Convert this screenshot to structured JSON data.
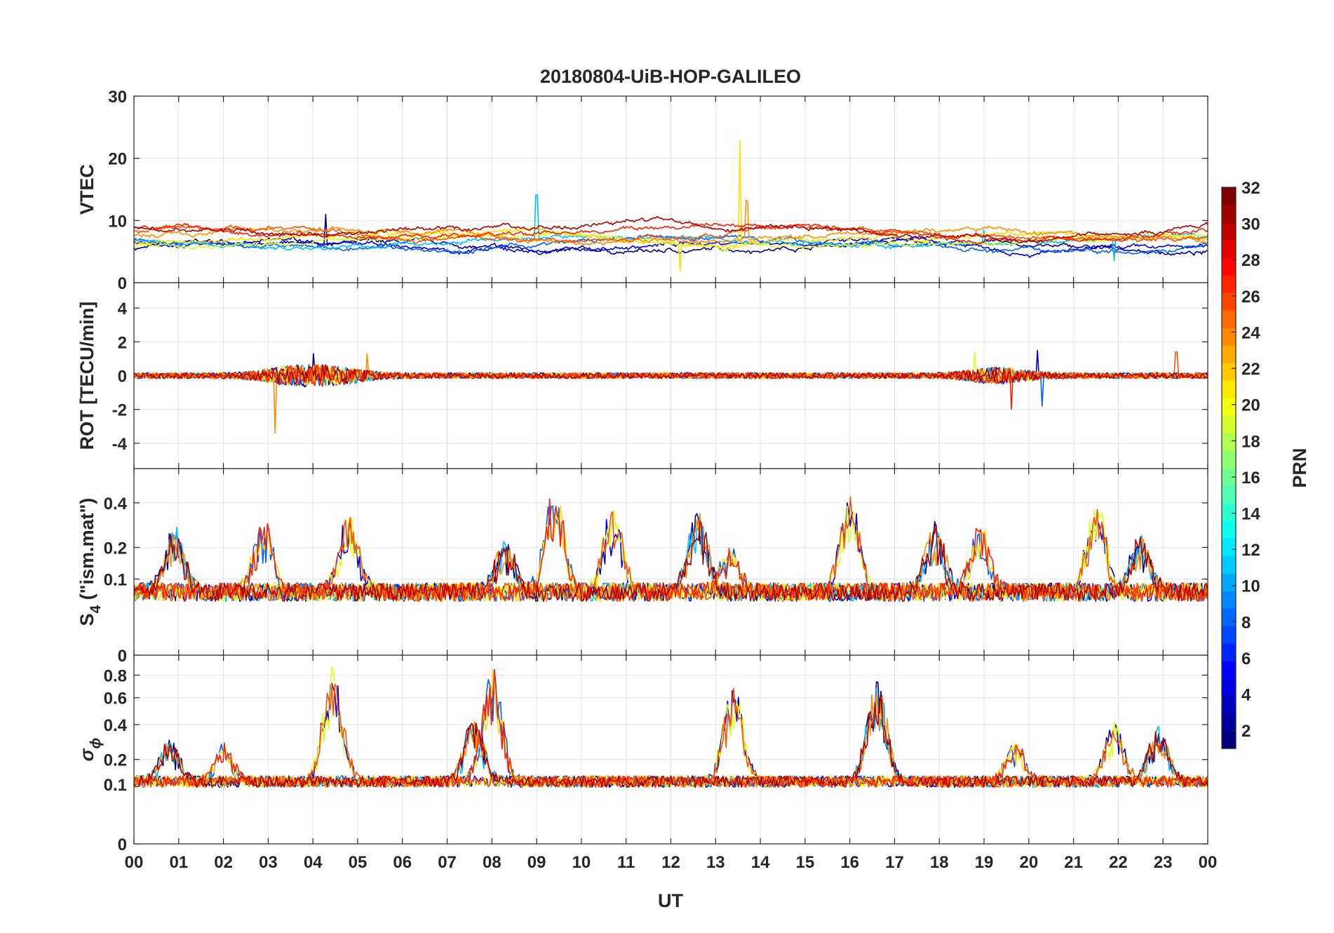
{
  "chart_data": {
    "type": "line",
    "title": "20180804-UiB-HOP-GALILEO",
    "xlabel": "UT",
    "x_ticks": [
      "00",
      "01",
      "02",
      "03",
      "04",
      "05",
      "06",
      "07",
      "08",
      "09",
      "10",
      "11",
      "12",
      "13",
      "14",
      "15",
      "16",
      "17",
      "18",
      "19",
      "20",
      "21",
      "22",
      "23",
      "00"
    ],
    "xlim": [
      0,
      24
    ],
    "grid": true,
    "panels": [
      {
        "name": "vtec",
        "ylabel": "VTEC",
        "ylim": [
          0,
          30
        ],
        "yticks": [
          "0",
          "10",
          "20",
          "30"
        ],
        "ytick_values": [
          0,
          10,
          20,
          30
        ],
        "baseline": 7.2,
        "noise": 0.35,
        "trend": 0.25,
        "spikes": [
          [
            4.3,
            5.0
          ],
          [
            9.0,
            7.0
          ],
          [
            12.2,
            -4.0
          ],
          [
            13.55,
            17.0
          ],
          [
            13.7,
            6.0
          ],
          [
            19.0,
            2.5
          ],
          [
            21.9,
            -3.5
          ]
        ]
      },
      {
        "name": "rot",
        "ylabel": "ROT [TECU/min]",
        "ylim": [
          -5.5,
          5.5
        ],
        "yticks": [
          "-4",
          "-2",
          "0",
          "2",
          "4"
        ],
        "ytick_values": [
          -4,
          -2,
          0,
          2,
          4
        ],
        "baseline": 0,
        "noise": 0.12,
        "spikes": [
          [
            3.15,
            -3.4
          ],
          [
            4.0,
            1.3
          ],
          [
            5.2,
            1.3
          ],
          [
            18.8,
            1.4
          ],
          [
            19.6,
            -2.0
          ],
          [
            20.2,
            1.5
          ],
          [
            20.3,
            -1.8
          ],
          [
            23.3,
            1.4
          ]
        ]
      },
      {
        "name": "s4",
        "ylabel_main": "S",
        "ylabel_sub": "4",
        "ylabel_rest": " (\"ism.mat\")",
        "ylim": [
          0,
          0.6
        ],
        "yticks": [
          "0",
          "0.1",
          "0.2",
          "0.4"
        ],
        "ytick_values": [
          0,
          0.1,
          0.2,
          0.4
        ],
        "scale": "sqrt",
        "baseline": 0.07,
        "noise": 0.02,
        "active": [
          [
            0.9,
            0.28
          ],
          [
            2.9,
            0.32
          ],
          [
            4.8,
            0.35
          ],
          [
            8.3,
            0.22
          ],
          [
            9.4,
            0.48
          ],
          [
            10.7,
            0.38
          ],
          [
            12.6,
            0.35
          ],
          [
            13.3,
            0.2
          ],
          [
            16.0,
            0.42
          ],
          [
            17.9,
            0.3
          ],
          [
            18.9,
            0.3
          ],
          [
            21.5,
            0.4
          ],
          [
            22.5,
            0.25
          ]
        ]
      },
      {
        "name": "sigma",
        "ylabel_main": "σ",
        "ylabel_sub": "ϕ",
        "ylim": [
          0,
          1.0
        ],
        "yticks": [
          "0",
          "0.1",
          "0.2",
          "0.4",
          "0.6",
          "0.8"
        ],
        "ytick_values": [
          0,
          0.1,
          0.2,
          0.4,
          0.6,
          0.8
        ],
        "scale": "sqrt",
        "baseline": 0.11,
        "noise": 0.02,
        "active": [
          [
            0.8,
            0.3
          ],
          [
            2.0,
            0.28
          ],
          [
            4.45,
            0.9
          ],
          [
            7.6,
            0.45
          ],
          [
            8.0,
            0.87
          ],
          [
            13.4,
            0.7
          ],
          [
            16.6,
            0.75
          ],
          [
            19.7,
            0.3
          ],
          [
            21.9,
            0.42
          ],
          [
            22.9,
            0.38
          ]
        ]
      }
    ],
    "colorbar": {
      "label": "PRN",
      "range": [
        1,
        32
      ],
      "ticks": [
        "2",
        "4",
        "6",
        "8",
        "10",
        "12",
        "14",
        "16",
        "18",
        "20",
        "22",
        "24",
        "26",
        "28",
        "30",
        "32"
      ],
      "tick_values": [
        2,
        4,
        6,
        8,
        10,
        12,
        14,
        16,
        18,
        20,
        22,
        24,
        26,
        28,
        30,
        32
      ],
      "colormap": "jet"
    },
    "series": [
      {
        "name": "PRN 1",
        "prn": 1,
        "color": "#00008f"
      },
      {
        "name": "PRN 3",
        "prn": 3,
        "color": "#0000df"
      },
      {
        "name": "PRN 7",
        "prn": 7,
        "color": "#0060ff"
      },
      {
        "name": "PRN 11",
        "prn": 11,
        "color": "#00c0ff"
      },
      {
        "name": "PRN 19",
        "prn": 19,
        "color": "#dfff20"
      },
      {
        "name": "PRN 21",
        "prn": 21,
        "color": "#ffdf00"
      },
      {
        "name": "PRN 24",
        "prn": 24,
        "color": "#ff8f00"
      },
      {
        "name": "PRN 26",
        "prn": 26,
        "color": "#ff5000"
      },
      {
        "name": "PRN 28",
        "prn": 28,
        "color": "#ff2000"
      },
      {
        "name": "PRN 31",
        "prn": 31,
        "color": "#af0000"
      }
    ]
  }
}
